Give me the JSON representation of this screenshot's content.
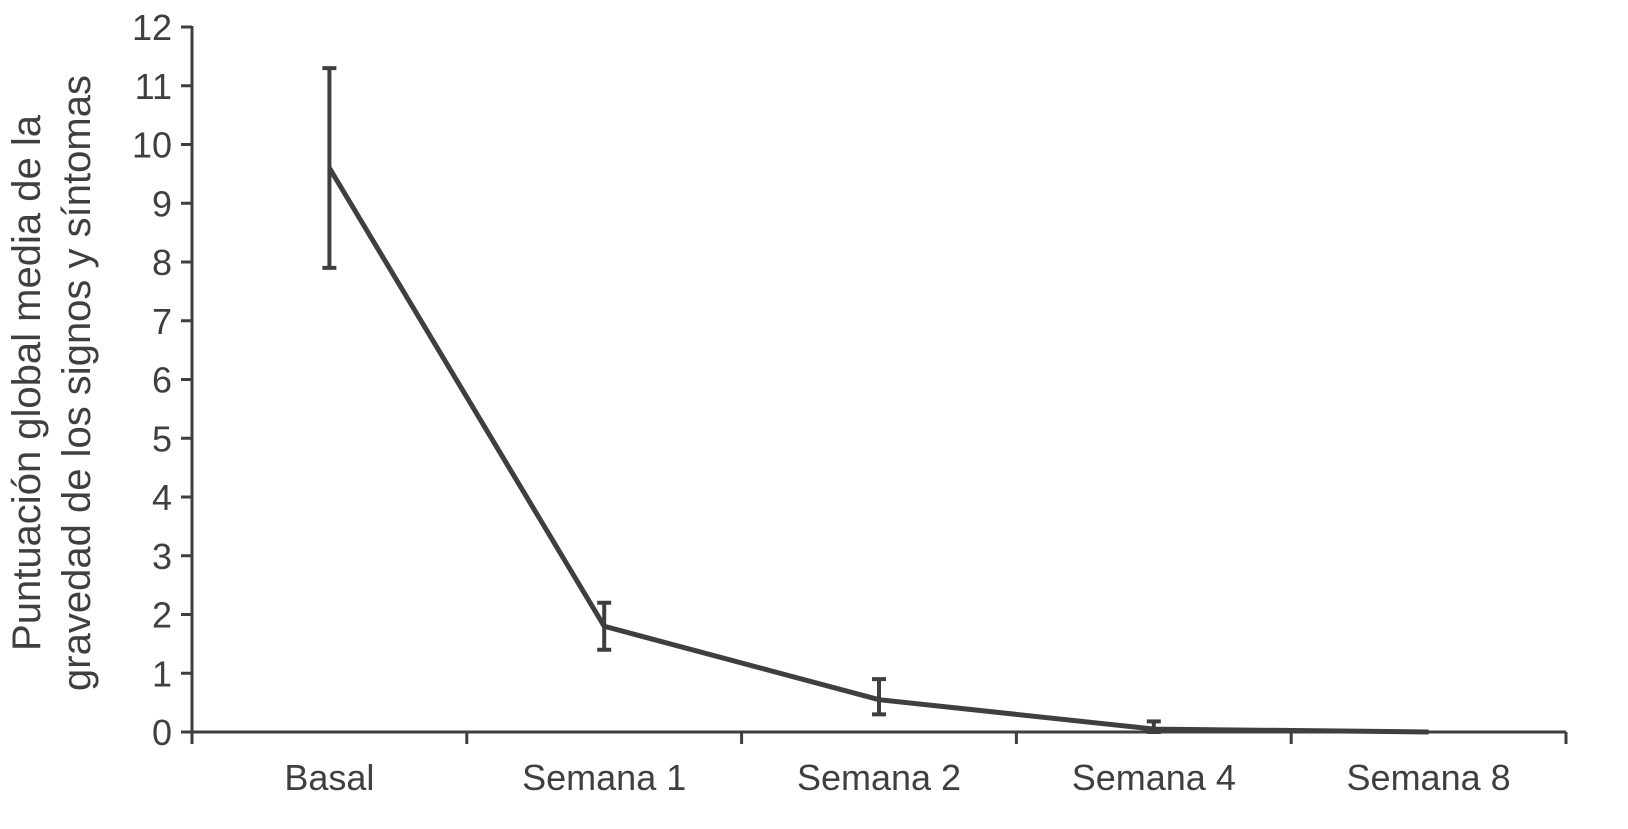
{
  "chart_data": {
    "type": "line",
    "title": "",
    "ylabel_lines": [
      "Puntuación global media de la",
      "gravedad de los signos y síntomas"
    ],
    "xlabel": "",
    "categories": [
      "Basal",
      "Semana 1",
      "Semana 2",
      "Semana 4",
      "Semana 8"
    ],
    "series": [
      {
        "values": [
          9.6,
          1.8,
          0.55,
          0.05,
          0.0
        ],
        "error_low": [
          7.9,
          1.4,
          0.3,
          0.0,
          null
        ],
        "error_high": [
          11.3,
          2.2,
          0.9,
          0.18,
          null
        ]
      }
    ],
    "ylim": [
      0,
      12
    ],
    "yticks": [
      "0",
      "1",
      "2",
      "3",
      "4",
      "5",
      "6",
      "7",
      "8",
      "9",
      "10",
      "11",
      "12"
    ],
    "grid": false,
    "legend": "none",
    "colors": {
      "line": "#3f3f3f",
      "axis": "#3f3f3f",
      "text": "#3f3f3f"
    }
  }
}
